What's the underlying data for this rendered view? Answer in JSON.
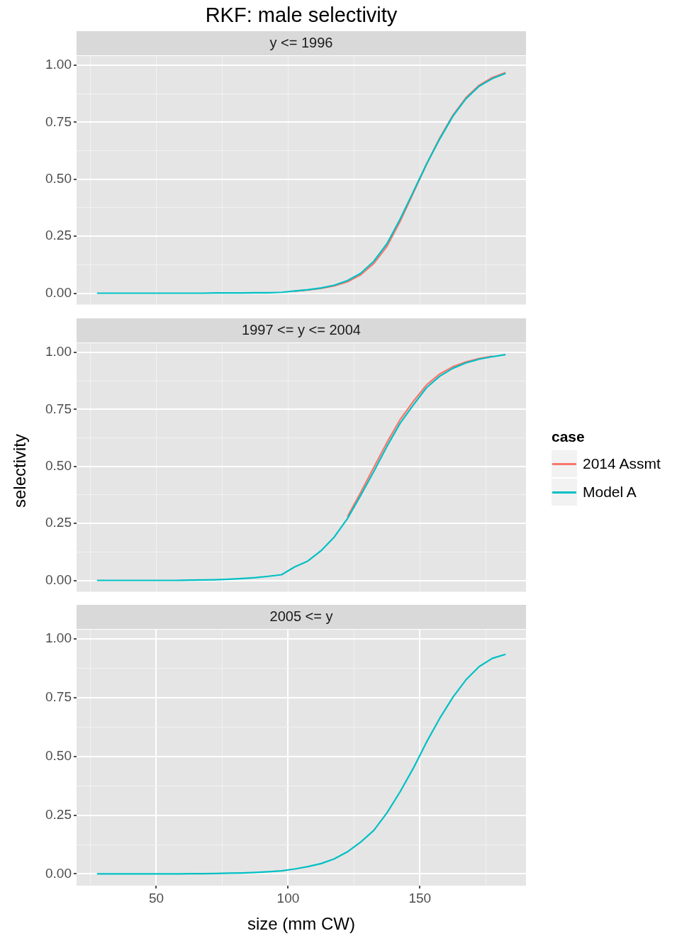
{
  "chart_data": [
    {
      "type": "line",
      "title": "RKF: male selectivity",
      "subtitle": "y <= 1996",
      "legend": "right",
      "legend_title": "case",
      "x": [
        27.5,
        32.5,
        37.5,
        42.5,
        47.5,
        52.5,
        57.5,
        62.5,
        67.5,
        72.5,
        77.5,
        82.5,
        87.5,
        92.5,
        97.5,
        102.5,
        107.5,
        112.5,
        117.5,
        122.5,
        127.5,
        132.5,
        137.5,
        142.5,
        147.5,
        152.5,
        157.5,
        162.5,
        167.5,
        172.5,
        177.5,
        182.5
      ],
      "xlim": [
        19.75,
        190.25
      ],
      "xticks": [
        {
          "value": 25,
          "label": null
        },
        {
          "value": 50,
          "label": null
        },
        {
          "value": 75,
          "label": null
        },
        {
          "value": 100,
          "label": null
        },
        {
          "value": 125,
          "label": null
        },
        {
          "value": 150,
          "label": null
        },
        {
          "value": 175,
          "label": null
        }
      ],
      "ylim": [
        -0.05,
        1.04
      ],
      "yticks": [
        {
          "value": 0,
          "label": "0.00"
        },
        {
          "value": 0.125,
          "label": null
        },
        {
          "value": 0.25,
          "label": "0.25"
        },
        {
          "value": 0.375,
          "label": null
        },
        {
          "value": 0.5,
          "label": "0.50"
        },
        {
          "value": 0.625,
          "label": null
        },
        {
          "value": 0.75,
          "label": "0.75"
        },
        {
          "value": 0.875,
          "label": null
        },
        {
          "value": 1,
          "label": "1.00"
        }
      ],
      "grid": true,
      "tick_labels": "y",
      "series": [
        {
          "name": "2014 Assmt",
          "color": "#f8766d",
          "values": [
            null,
            null,
            null,
            null,
            null,
            null,
            null,
            null,
            null,
            null,
            null,
            null,
            null,
            null,
            null,
            0.009,
            0.014,
            0.021,
            0.032,
            0.05,
            0.08,
            0.13,
            0.205,
            0.315,
            0.44,
            0.565,
            0.68,
            0.78,
            0.858,
            0.912,
            0.946,
            0.968
          ]
        },
        {
          "name": "Model A",
          "color": "#00bfc4",
          "values": [
            0,
            0,
            0,
            0,
            0,
            0,
            0,
            0,
            0,
            0.001,
            0.001,
            0.001,
            0.002,
            0.002,
            0.004,
            0.01,
            0.015,
            0.023,
            0.035,
            0.055,
            0.087,
            0.14,
            0.217,
            0.325,
            0.445,
            0.566,
            0.676,
            0.776,
            0.853,
            0.908,
            0.941,
            0.964
          ]
        }
      ]
    },
    {
      "type": "line",
      "subtitle": "1997 <= y <= 2004",
      "ylabel": "selectivity",
      "x": [
        27.5,
        32.5,
        37.5,
        42.5,
        47.5,
        52.5,
        57.5,
        62.5,
        67.5,
        72.5,
        77.5,
        82.5,
        87.5,
        92.5,
        97.5,
        102.5,
        107.5,
        112.5,
        117.5,
        122.5,
        127.5,
        132.5,
        137.5,
        142.5,
        147.5,
        152.5,
        157.5,
        162.5,
        167.5,
        172.5,
        177.5,
        182.5
      ],
      "xlim": [
        19.75,
        190.25
      ],
      "xticks": [
        {
          "value": 25,
          "label": null
        },
        {
          "value": 50,
          "label": null
        },
        {
          "value": 75,
          "label": null
        },
        {
          "value": 100,
          "label": null
        },
        {
          "value": 125,
          "label": null
        },
        {
          "value": 150,
          "label": null
        },
        {
          "value": 175,
          "label": null
        }
      ],
      "ylim": [
        -0.05,
        1.04
      ],
      "yticks": [
        {
          "value": 0,
          "label": "0.00"
        },
        {
          "value": 0.125,
          "label": null
        },
        {
          "value": 0.25,
          "label": "0.25"
        },
        {
          "value": 0.375,
          "label": null
        },
        {
          "value": 0.5,
          "label": "0.50"
        },
        {
          "value": 0.625,
          "label": null
        },
        {
          "value": 0.75,
          "label": "0.75"
        },
        {
          "value": 0.875,
          "label": null
        },
        {
          "value": 1,
          "label": "1.00"
        }
      ],
      "grid": true,
      "tick_labels": "y",
      "series": [
        {
          "color": "#f8766d",
          "values": [
            null,
            null,
            null,
            null,
            null,
            null,
            null,
            null,
            null,
            null,
            null,
            null,
            null,
            null,
            null,
            null,
            null,
            null,
            null,
            0.28,
            0.385,
            0.495,
            0.605,
            0.705,
            0.785,
            0.857,
            0.905,
            0.937,
            0.958,
            0.973,
            0.983,
            null
          ]
        },
        {
          "color": "#00bfc4",
          "values": [
            0,
            0,
            0,
            0,
            0,
            0,
            0,
            0.001,
            0.002,
            0.003,
            0.005,
            0.008,
            0.012,
            0.018,
            0.025,
            0.059,
            0.085,
            0.13,
            0.19,
            0.271,
            0.372,
            0.477,
            0.588,
            0.689,
            0.769,
            0.845,
            0.895,
            0.93,
            0.954,
            0.97,
            0.981,
            0.99
          ]
        }
      ]
    },
    {
      "type": "line",
      "subtitle": "2005 <= y",
      "xlabel": "size (mm CW)",
      "x": [
        27.5,
        32.5,
        37.5,
        42.5,
        47.5,
        52.5,
        57.5,
        62.5,
        67.5,
        72.5,
        77.5,
        82.5,
        87.5,
        92.5,
        97.5,
        102.5,
        107.5,
        112.5,
        117.5,
        122.5,
        127.5,
        132.5,
        137.5,
        142.5,
        147.5,
        152.5,
        157.5,
        162.5,
        167.5,
        172.5,
        177.5,
        182.5
      ],
      "xlim": [
        19.75,
        190.25
      ],
      "xticks": [
        {
          "value": 25,
          "label": null
        },
        {
          "value": 50,
          "label": "50"
        },
        {
          "value": 75,
          "label": null
        },
        {
          "value": 100,
          "label": "100"
        },
        {
          "value": 125,
          "label": null
        },
        {
          "value": 150,
          "label": "150"
        },
        {
          "value": 175,
          "label": null
        }
      ],
      "ylim": [
        -0.05,
        1.04
      ],
      "yticks": [
        {
          "value": 0,
          "label": "0.00"
        },
        {
          "value": 0.125,
          "label": null
        },
        {
          "value": 0.25,
          "label": "0.25"
        },
        {
          "value": 0.375,
          "label": null
        },
        {
          "value": 0.5,
          "label": "0.50"
        },
        {
          "value": 0.625,
          "label": null
        },
        {
          "value": 0.75,
          "label": "0.75"
        },
        {
          "value": 0.875,
          "label": null
        },
        {
          "value": 1,
          "label": "1.00"
        }
      ],
      "grid": true,
      "series": [
        {
          "color": "#00bfc4",
          "values": [
            0,
            0,
            0,
            0,
            0,
            0,
            0,
            0.001,
            0.001,
            0.002,
            0.003,
            0.004,
            0.006,
            0.009,
            0.013,
            0.021,
            0.031,
            0.044,
            0.064,
            0.094,
            0.135,
            0.185,
            0.26,
            0.35,
            0.45,
            0.561,
            0.662,
            0.752,
            0.827,
            0.883,
            0.918,
            0.935
          ]
        }
      ]
    }
  ]
}
